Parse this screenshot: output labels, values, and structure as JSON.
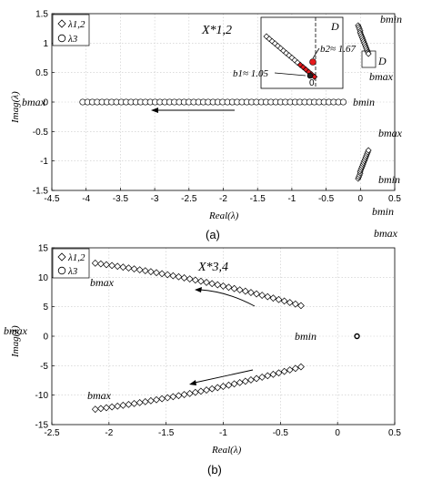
{
  "chart_data": [
    {
      "type": "scatter",
      "caption": "(a)",
      "xlabel": "Real(λ)",
      "ylabel": "Imag(λ)",
      "xlim": [
        -4.5,
        0.5
      ],
      "ylim": [
        -1.5,
        1.5
      ],
      "xticks": [
        "-4.5",
        "-4",
        "-3.5",
        "-3",
        "-2.5",
        "-2",
        "-1.5",
        "-1",
        "-0.5",
        "0",
        "0.5"
      ],
      "yticks": [
        "1.5",
        "1",
        "0.5",
        "0",
        "-0.5",
        "-1",
        "-1.5"
      ],
      "grid": true,
      "legend": {
        "placement": "top-left",
        "entries": [
          "λ1,2",
          "λ3"
        ]
      },
      "annotations": {
        "matrix": "X*1,2",
        "bmin_left": "bmin",
        "bmax_left": "bmax",
        "bmin_top": "bmin",
        "bmax_top": "bmax",
        "bmax_bottom": "bmax",
        "bmin_bottom": "bmin",
        "bmin_below": "bmin",
        "bmax_below": "bmax",
        "inset_D": "D",
        "inset_D2": "D",
        "inset_b1": "b1≈ 1.05",
        "inset_b2": "b2≈ 1.67",
        "inset_zero": "0"
      },
      "series": [
        {
          "name": "λ3",
          "marker": "circle",
          "x_start": -4.05,
          "x_end": -0.25,
          "count": 55,
          "y": 0
        },
        {
          "name": "λ1,2",
          "marker": "diamond",
          "x": [
            0.02,
            0.03,
            0.04,
            0.05,
            0.05,
            0.06,
            0.07,
            0.08,
            0.09,
            0.1,
            0.11,
            0.12,
            0.13,
            0.14,
            0.15,
            0.16,
            0.17
          ],
          "y_upper": [
            1.3,
            1.27,
            1.24,
            1.21,
            1.18,
            1.15,
            1.12,
            1.09,
            1.06,
            1.03,
            1.0,
            0.97,
            0.94,
            0.91,
            0.88,
            0.85,
            0.82
          ]
        }
      ]
    },
    {
      "type": "scatter",
      "caption": "(b)",
      "xlabel": "Real(λ)",
      "ylabel": "Imag(λ)",
      "xlim": [
        -2.5,
        0.5
      ],
      "ylim": [
        -15,
        15
      ],
      "xticks": [
        "-2.5",
        "-2",
        "-1.5",
        "-1",
        "-0.5",
        "0",
        "0.5"
      ],
      "yticks": [
        "15",
        "10",
        "5",
        "0",
        "-5",
        "-10",
        "-15"
      ],
      "grid": true,
      "legend": {
        "placement": "top-left",
        "entries": [
          "λ1,2",
          "λ3"
        ]
      },
      "annotations": {
        "matrix": "X*3,4",
        "bmax_upper": "bmax",
        "bmax_lower": "bmax",
        "bmin": "bmin",
        "bmax_side": "bmax"
      },
      "series": [
        {
          "name": "λ1,2",
          "marker": "diamond",
          "x_start": -2.12,
          "x_end": -0.32,
          "count": 38,
          "y_start": 12.4,
          "y_end": 5.2
        },
        {
          "name": "λ3",
          "marker": "circle",
          "x": [
            0.17
          ],
          "y": [
            0
          ]
        }
      ]
    }
  ]
}
